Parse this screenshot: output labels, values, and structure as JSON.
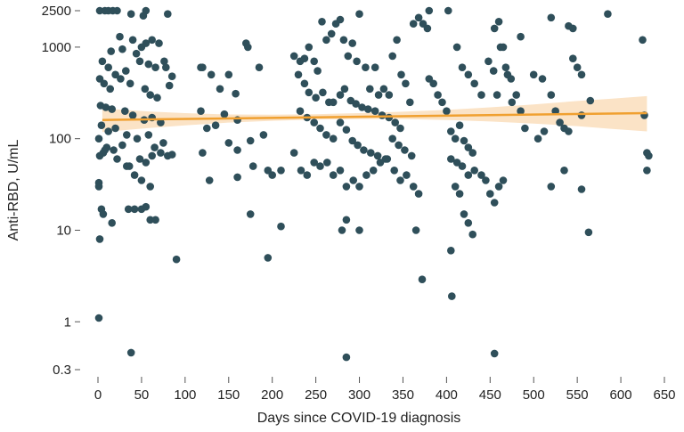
{
  "chart_data": {
    "type": "scatter",
    "xlabel": "Days since COVID-19 diagnosis",
    "ylabel": "Anti-RBD, U/mL",
    "xlim": [
      0,
      650
    ],
    "ylim": [
      0.3,
      2500
    ],
    "y_scale": "log",
    "grid": false,
    "x_ticks": [
      0,
      50,
      100,
      150,
      200,
      250,
      300,
      350,
      400,
      450,
      500,
      550,
      600,
      650
    ],
    "y_ticks": [
      0.3,
      1,
      10,
      100,
      1000,
      2500
    ],
    "y_tick_labels": [
      "0.3",
      "1",
      "10",
      "100",
      "1000",
      "2500"
    ],
    "colors": {
      "points": "#2f4f5a",
      "trend": "#f0a030",
      "band": "#fbe3c6"
    },
    "trend_line": {
      "x": [
        5,
        630
      ],
      "y": [
        160,
        190
      ]
    },
    "confidence_band": {
      "x": [
        5,
        30,
        60,
        100,
        150,
        200,
        250,
        300,
        350,
        400,
        450,
        500,
        550,
        590,
        630
      ],
      "lower": [
        118,
        124,
        131,
        140,
        150,
        157,
        162,
        164,
        164,
        160,
        154,
        146,
        137,
        128,
        120
      ],
      "upper": [
        215,
        206,
        198,
        190,
        184,
        183,
        185,
        190,
        197,
        206,
        220,
        237,
        258,
        274,
        292
      ]
    },
    "points": [
      [
        2,
        2500
      ],
      [
        8,
        2500
      ],
      [
        12,
        2500
      ],
      [
        17,
        2500
      ],
      [
        22,
        2500
      ],
      [
        38,
        2300
      ],
      [
        55,
        2500
      ],
      [
        52,
        2200
      ],
      [
        80,
        2300
      ],
      [
        25,
        1300
      ],
      [
        40,
        1200
      ],
      [
        50,
        1000
      ],
      [
        55,
        1100
      ],
      [
        62,
        1200
      ],
      [
        70,
        1100
      ],
      [
        15,
        900
      ],
      [
        28,
        950
      ],
      [
        44,
        850
      ],
      [
        5,
        700
      ],
      [
        12,
        600
      ],
      [
        20,
        500
      ],
      [
        32,
        550
      ],
      [
        48,
        700
      ],
      [
        58,
        650
      ],
      [
        66,
        600
      ],
      [
        76,
        700
      ],
      [
        2,
        450
      ],
      [
        7,
        400
      ],
      [
        14,
        350
      ],
      [
        26,
        450
      ],
      [
        37,
        400
      ],
      [
        54,
        350
      ],
      [
        60,
        300
      ],
      [
        68,
        280
      ],
      [
        85,
        480
      ],
      [
        78,
        600
      ],
      [
        82,
        380
      ],
      [
        3,
        230
      ],
      [
        9,
        220
      ],
      [
        16,
        210
      ],
      [
        31,
        200
      ],
      [
        40,
        180
      ],
      [
        53,
        160
      ],
      [
        62,
        170
      ],
      [
        72,
        150
      ],
      [
        4,
        140
      ],
      [
        12,
        120
      ],
      [
        20,
        130
      ],
      [
        33,
        110
      ],
      [
        45,
        100
      ],
      [
        58,
        110
      ],
      [
        65,
        80
      ],
      [
        75,
        90
      ],
      [
        1,
        100
      ],
      [
        6,
        70
      ],
      [
        10,
        80
      ],
      [
        18,
        75
      ],
      [
        28,
        85
      ],
      [
        36,
        50
      ],
      [
        48,
        60
      ],
      [
        55,
        55
      ],
      [
        62,
        65
      ],
      [
        72,
        70
      ],
      [
        80,
        65
      ],
      [
        85,
        67
      ],
      [
        2,
        65
      ],
      [
        8,
        75
      ],
      [
        22,
        60
      ],
      [
        33,
        50
      ],
      [
        42,
        40
      ],
      [
        50,
        35
      ],
      [
        60,
        30
      ],
      [
        1,
        33
      ],
      [
        1,
        30
      ],
      [
        4,
        17
      ],
      [
        6,
        15
      ],
      [
        16,
        12
      ],
      [
        35,
        17
      ],
      [
        42,
        17
      ],
      [
        50,
        17
      ],
      [
        55,
        18
      ],
      [
        60,
        13
      ],
      [
        66,
        13
      ],
      [
        2,
        8
      ],
      [
        1,
        1.1
      ],
      [
        38,
        0.46
      ],
      [
        90,
        4.8
      ],
      [
        118,
        600
      ],
      [
        120,
        600
      ],
      [
        130,
        500
      ],
      [
        140,
        350
      ],
      [
        150,
        500
      ],
      [
        158,
        310
      ],
      [
        170,
        1100
      ],
      [
        172,
        1000
      ],
      [
        185,
        600
      ],
      [
        118,
        200
      ],
      [
        125,
        130
      ],
      [
        135,
        140
      ],
      [
        145,
        185
      ],
      [
        160,
        160
      ],
      [
        175,
        95
      ],
      [
        190,
        110
      ],
      [
        120,
        70
      ],
      [
        128,
        35
      ],
      [
        150,
        90
      ],
      [
        160,
        75
      ],
      [
        178,
        50
      ],
      [
        195,
        45
      ],
      [
        210,
        45
      ],
      [
        225,
        70
      ],
      [
        175,
        15
      ],
      [
        195,
        5
      ],
      [
        210,
        11
      ],
      [
        160,
        38
      ],
      [
        200,
        40
      ],
      [
        225,
        800
      ],
      [
        232,
        700
      ],
      [
        237,
        750
      ],
      [
        242,
        1000
      ],
      [
        248,
        700
      ],
      [
        252,
        550
      ],
      [
        257,
        1900
      ],
      [
        262,
        1200
      ],
      [
        268,
        1400
      ],
      [
        273,
        1800
      ],
      [
        278,
        2000
      ],
      [
        282,
        1200
      ],
      [
        287,
        800
      ],
      [
        292,
        1100
      ],
      [
        297,
        700
      ],
      [
        300,
        2300
      ],
      [
        307,
        600
      ],
      [
        312,
        350
      ],
      [
        318,
        600
      ],
      [
        322,
        300
      ],
      [
        328,
        350
      ],
      [
        334,
        300
      ],
      [
        338,
        800
      ],
      [
        343,
        1200
      ],
      [
        348,
        500
      ],
      [
        353,
        400
      ],
      [
        358,
        250
      ],
      [
        362,
        1800
      ],
      [
        368,
        2100
      ],
      [
        373,
        1800
      ],
      [
        378,
        1600
      ],
      [
        380,
        2500
      ],
      [
        230,
        500
      ],
      [
        237,
        400
      ],
      [
        242,
        320
      ],
      [
        250,
        280
      ],
      [
        258,
        320
      ],
      [
        265,
        250
      ],
      [
        270,
        250
      ],
      [
        278,
        300
      ],
      [
        283,
        350
      ],
      [
        290,
        260
      ],
      [
        296,
        240
      ],
      [
        303,
        220
      ],
      [
        310,
        210
      ],
      [
        318,
        200
      ],
      [
        326,
        180
      ],
      [
        334,
        170
      ],
      [
        341,
        150
      ],
      [
        347,
        130
      ],
      [
        232,
        200
      ],
      [
        240,
        170
      ],
      [
        248,
        150
      ],
      [
        255,
        130
      ],
      [
        262,
        110
      ],
      [
        270,
        100
      ],
      [
        278,
        150
      ],
      [
        285,
        125
      ],
      [
        292,
        95
      ],
      [
        298,
        85
      ],
      [
        305,
        75
      ],
      [
        313,
        70
      ],
      [
        321,
        65
      ],
      [
        330,
        60
      ],
      [
        338,
        100
      ],
      [
        345,
        85
      ],
      [
        352,
        75
      ],
      [
        360,
        65
      ],
      [
        233,
        45
      ],
      [
        240,
        40
      ],
      [
        248,
        55
      ],
      [
        255,
        50
      ],
      [
        263,
        55
      ],
      [
        270,
        40
      ],
      [
        278,
        45
      ],
      [
        285,
        30
      ],
      [
        293,
        35
      ],
      [
        300,
        30
      ],
      [
        308,
        40
      ],
      [
        316,
        45
      ],
      [
        324,
        55
      ],
      [
        332,
        60
      ],
      [
        340,
        45
      ],
      [
        347,
        35
      ],
      [
        354,
        40
      ],
      [
        362,
        30
      ],
      [
        280,
        10
      ],
      [
        285,
        13
      ],
      [
        300,
        10
      ],
      [
        365,
        10
      ],
      [
        368,
        25
      ],
      [
        372,
        2.9
      ],
      [
        285,
        0.41
      ],
      [
        380,
        450
      ],
      [
        385,
        400
      ],
      [
        390,
        300
      ],
      [
        395,
        250
      ],
      [
        400,
        200
      ],
      [
        405,
        120
      ],
      [
        410,
        100
      ],
      [
        415,
        140
      ],
      [
        420,
        95
      ],
      [
        425,
        80
      ],
      [
        430,
        70
      ],
      [
        405,
        60
      ],
      [
        412,
        55
      ],
      [
        418,
        50
      ],
      [
        425,
        40
      ],
      [
        432,
        45
      ],
      [
        440,
        40
      ],
      [
        445,
        35
      ],
      [
        450,
        25
      ],
      [
        455,
        20
      ],
      [
        460,
        30
      ],
      [
        465,
        35
      ],
      [
        410,
        30
      ],
      [
        415,
        25
      ],
      [
        420,
        15
      ],
      [
        425,
        12
      ],
      [
        430,
        9
      ],
      [
        405,
        6
      ],
      [
        406,
        1.9
      ],
      [
        402,
        2500
      ],
      [
        412,
        1000
      ],
      [
        418,
        600
      ],
      [
        425,
        500
      ],
      [
        432,
        400
      ],
      [
        440,
        300
      ],
      [
        448,
        700
      ],
      [
        454,
        550
      ],
      [
        458,
        300
      ],
      [
        462,
        1000
      ],
      [
        468,
        600
      ],
      [
        474,
        450
      ],
      [
        480,
        300
      ],
      [
        485,
        200
      ],
      [
        490,
        130
      ],
      [
        455,
        1600
      ],
      [
        460,
        1900
      ],
      [
        465,
        1000
      ],
      [
        470,
        500
      ],
      [
        475,
        250
      ],
      [
        485,
        1300
      ],
      [
        500,
        500
      ],
      [
        510,
        450
      ],
      [
        520,
        300
      ],
      [
        525,
        200
      ],
      [
        530,
        150
      ],
      [
        535,
        130
      ],
      [
        540,
        120
      ],
      [
        520,
        2100
      ],
      [
        540,
        1700
      ],
      [
        545,
        1600
      ],
      [
        550,
        600
      ],
      [
        555,
        180
      ],
      [
        565,
        260
      ],
      [
        545,
        750
      ],
      [
        555,
        500
      ],
      [
        505,
        100
      ],
      [
        512,
        120
      ],
      [
        520,
        30
      ],
      [
        535,
        45
      ],
      [
        555,
        28
      ],
      [
        563,
        9.5
      ],
      [
        455,
        0.45
      ],
      [
        585,
        2300
      ],
      [
        625,
        1200
      ],
      [
        627,
        180
      ],
      [
        630,
        70
      ],
      [
        632,
        65
      ],
      [
        630,
        45
      ]
    ]
  }
}
